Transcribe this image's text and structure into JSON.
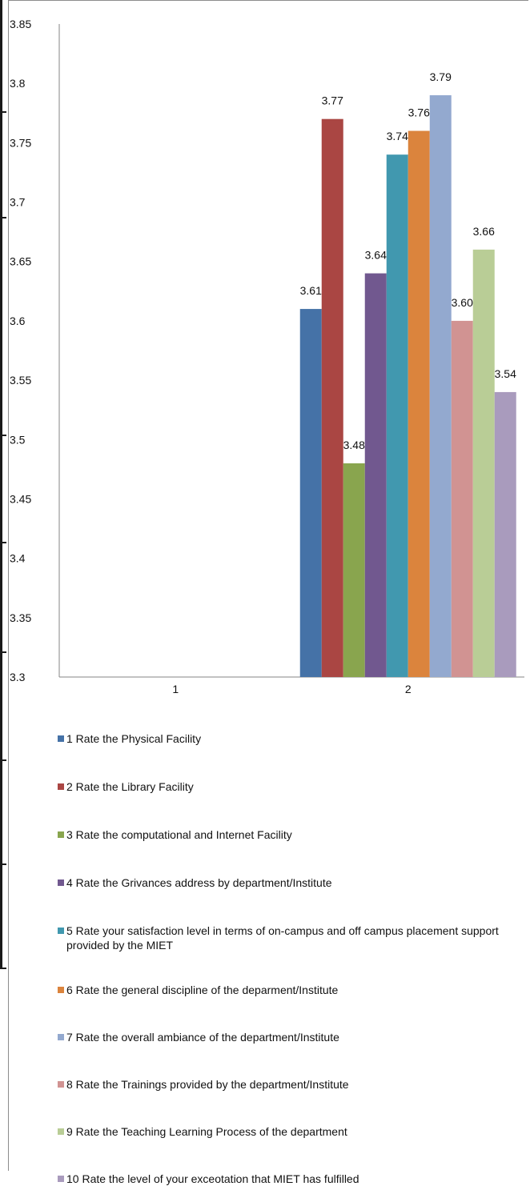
{
  "chart_data": {
    "type": "bar",
    "categories": [
      "1",
      "2"
    ],
    "ylim": [
      3.3,
      3.85
    ],
    "yticks": [
      "3.3",
      "3.35",
      "3.4",
      "3.45",
      "3.5",
      "3.55",
      "3.6",
      "3.65",
      "3.7",
      "3.75",
      "3.8",
      "3.85"
    ],
    "series": [
      {
        "name": "1 Rate the Physical Facility",
        "color": "#4572a7",
        "values": [
          null,
          3.61
        ],
        "label": "3.61"
      },
      {
        "name": "2 Rate the Library Facility",
        "color": "#aa4643",
        "values": [
          null,
          3.77
        ],
        "label": "3.77"
      },
      {
        "name": "3 Rate the computational and Internet Facility",
        "color": "#89a54e",
        "values": [
          null,
          3.48
        ],
        "label": "3.48"
      },
      {
        "name": "4 Rate the Grivances address by department/Institute",
        "color": "#71588f",
        "values": [
          null,
          3.64
        ],
        "label": "3.64"
      },
      {
        "name": "5 Rate your satisfaction level in terms of on-campus and off campus placement support provided by the MIET",
        "color": "#4198af",
        "values": [
          null,
          3.74
        ],
        "label": "3.74"
      },
      {
        "name": "6 Rate the general discipline of the deparment/Institute",
        "color": "#db843d",
        "values": [
          null,
          3.76
        ],
        "label": "3.76"
      },
      {
        "name": "7 Rate the overall ambiance of the department/Institute",
        "color": "#93a9cf",
        "values": [
          null,
          3.79
        ],
        "label": "3.79"
      },
      {
        "name": "8 Rate the Trainings provided by the department/Institute",
        "color": "#d19392",
        "values": [
          null,
          3.6
        ],
        "label": "3.60"
      },
      {
        "name": "9 Rate the Teaching Learning Process of the department",
        "color": "#b9cd96",
        "values": [
          null,
          3.66
        ],
        "label": "3.66"
      },
      {
        "name": "10 Rate the level of your exceotation that MIET has fulfilled",
        "color": "#a99bbd",
        "values": [
          null,
          3.54
        ],
        "label": "3.54"
      }
    ],
    "legend_position": "bottom",
    "grid": false
  }
}
